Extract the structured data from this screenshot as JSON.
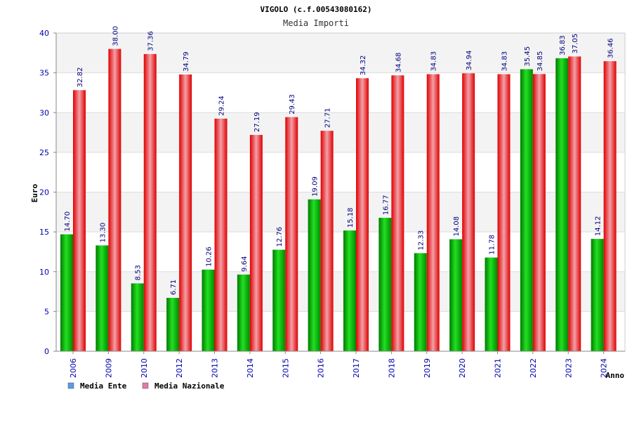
{
  "chart_data": {
    "type": "bar",
    "title": "VIGOLO (c.f.00543080162)",
    "subtitle": "Media Importi",
    "xlabel": "Anno",
    "ylabel": "Euro",
    "ylim": [
      0,
      40
    ],
    "yticks": [
      0,
      5,
      10,
      15,
      20,
      25,
      30,
      35,
      40
    ],
    "grid": true,
    "legend_position": "bottom-left",
    "categories": [
      "2006",
      "2009",
      "2010",
      "2012",
      "2013",
      "2014",
      "2015",
      "2016",
      "2017",
      "2018",
      "2019",
      "2020",
      "2021",
      "2022",
      "2023",
      "2024"
    ],
    "series": [
      {
        "name": "Media Ente",
        "color": "#00bb00",
        "legend_color": "#5a9be6",
        "values": [
          14.7,
          13.3,
          8.53,
          6.71,
          10.26,
          9.64,
          12.76,
          19.09,
          15.18,
          16.77,
          12.33,
          14.08,
          11.78,
          35.45,
          36.83,
          14.12
        ],
        "labels": [
          "14.70",
          "13.30",
          "8.53",
          "6.71",
          "10.26",
          "9.64",
          "12.76",
          "19.09",
          "15.18",
          "16.77",
          "12.33",
          "14.08",
          "11.78",
          "35.45",
          "36.83",
          "14.12"
        ]
      },
      {
        "name": "Media Nazionale",
        "color": "#ee0000",
        "legend_color": "#e07aa8",
        "values": [
          32.82,
          38.0,
          37.36,
          34.79,
          29.24,
          27.19,
          29.43,
          27.71,
          34.32,
          34.68,
          34.83,
          34.94,
          34.83,
          34.85,
          37.05,
          36.46
        ],
        "labels": [
          "32.82",
          "38.00",
          "37.36",
          "34.79",
          "29.24",
          "27.19",
          "29.43",
          "27.71",
          "34.32",
          "34.68",
          "34.83",
          "34.94",
          "34.83",
          "34.85",
          "37.05",
          "36.46"
        ]
      }
    ]
  }
}
